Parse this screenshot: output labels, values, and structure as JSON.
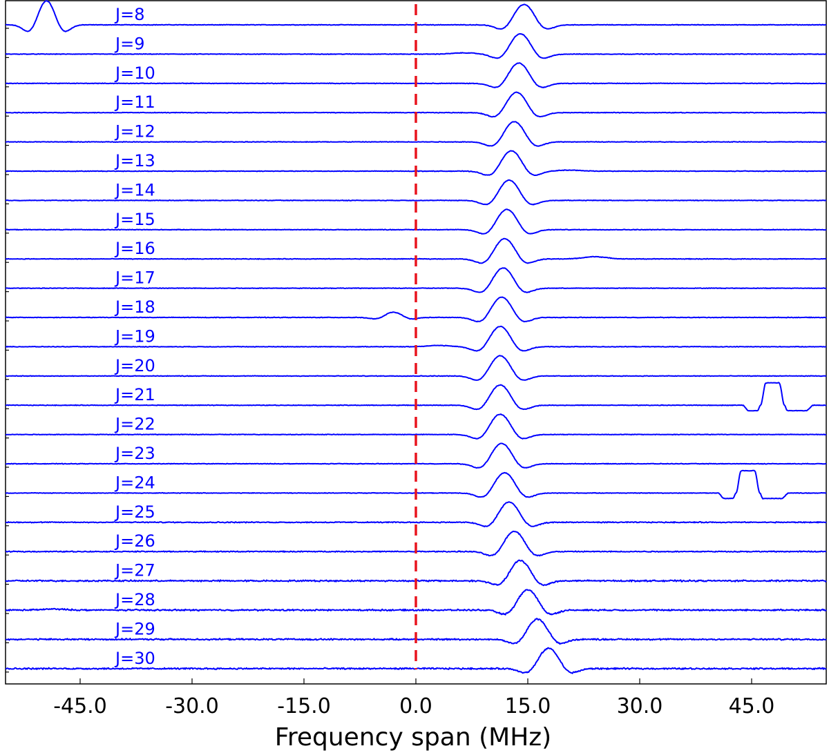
{
  "chart_data": {
    "type": "line",
    "title": "",
    "xlabel": "Frequency span (MHz)",
    "ylabel": "",
    "xlim": [
      -55,
      55
    ],
    "x_ticks": [
      "-45.0",
      "-30.0",
      "-15.0",
      "0.0",
      "15.0",
      "30.0",
      "45.0"
    ],
    "x_tick_values": [
      -45,
      -30,
      -15,
      0,
      15,
      30,
      45
    ],
    "grid": false,
    "legend": "none",
    "reference_line": {
      "x": 0.0,
      "style": "dashed",
      "color": "#e8141e"
    },
    "trace_color": "#0000ff",
    "series": [
      {
        "name": "J=8",
        "peak_center": 14.5,
        "peak_height": 0.5,
        "extra_features": [
          {
            "center": -49.5,
            "height": 1.0,
            "type": "derivative"
          }
        ]
      },
      {
        "name": "J=9",
        "peak_center": 14.0,
        "peak_height": 0.5,
        "extra_features": [
          {
            "center": 6.5,
            "height": 0.05,
            "type": "bump"
          }
        ]
      },
      {
        "name": "J=10",
        "peak_center": 13.8,
        "peak_height": 0.5,
        "extra_features": []
      },
      {
        "name": "J=11",
        "peak_center": 13.5,
        "peak_height": 0.5,
        "extra_features": []
      },
      {
        "name": "J=12",
        "peak_center": 13.2,
        "peak_height": 0.5,
        "extra_features": []
      },
      {
        "name": "J=13",
        "peak_center": 12.8,
        "peak_height": 0.5,
        "extra_features": [
          {
            "center": 20.5,
            "height": 0.04,
            "type": "bump"
          }
        ]
      },
      {
        "name": "J=14",
        "peak_center": 12.5,
        "peak_height": 0.5,
        "extra_features": []
      },
      {
        "name": "J=15",
        "peak_center": 12.2,
        "peak_height": 0.5,
        "extra_features": []
      },
      {
        "name": "J=16",
        "peak_center": 11.9,
        "peak_height": 0.5,
        "extra_features": [
          {
            "center": 24.0,
            "height": 0.09,
            "type": "bump"
          }
        ]
      },
      {
        "name": "J=17",
        "peak_center": 11.7,
        "peak_height": 0.5,
        "extra_features": []
      },
      {
        "name": "J=18",
        "peak_center": 11.5,
        "peak_height": 0.5,
        "extra_features": [
          {
            "center": -3.0,
            "height": 0.22,
            "type": "derivative"
          }
        ]
      },
      {
        "name": "J=19",
        "peak_center": 11.3,
        "peak_height": 0.5,
        "extra_features": [
          {
            "center": 3.0,
            "height": 0.05,
            "type": "bump"
          }
        ]
      },
      {
        "name": "J=20",
        "peak_center": 11.3,
        "peak_height": 0.5,
        "extra_features": []
      },
      {
        "name": "J=21",
        "peak_center": 11.3,
        "peak_height": 0.5,
        "extra_features": [
          {
            "center": 47.8,
            "height": 0.9,
            "type": "flat-top"
          }
        ]
      },
      {
        "name": "J=22",
        "peak_center": 11.3,
        "peak_height": 0.5,
        "extra_features": []
      },
      {
        "name": "J=23",
        "peak_center": 11.5,
        "peak_height": 0.5,
        "extra_features": []
      },
      {
        "name": "J=24",
        "peak_center": 11.9,
        "peak_height": 0.5,
        "extra_features": [
          {
            "center": 44.5,
            "height": 0.9,
            "type": "flat-top"
          }
        ]
      },
      {
        "name": "J=25",
        "peak_center": 12.5,
        "peak_height": 0.5,
        "extra_features": []
      },
      {
        "name": "J=26",
        "peak_center": 13.2,
        "peak_height": 0.5,
        "extra_features": []
      },
      {
        "name": "J=27",
        "peak_center": 14.0,
        "peak_height": 0.5,
        "extra_features": []
      },
      {
        "name": "J=28",
        "peak_center": 15.0,
        "peak_height": 0.5,
        "extra_features": [
          {
            "center": -48.5,
            "height": 0.04,
            "type": "bump"
          }
        ]
      },
      {
        "name": "J=29",
        "peak_center": 16.3,
        "peak_height": 0.5,
        "extra_features": []
      },
      {
        "name": "J=30",
        "peak_center": 17.8,
        "peak_height": 0.5,
        "extra_features": []
      }
    ]
  }
}
